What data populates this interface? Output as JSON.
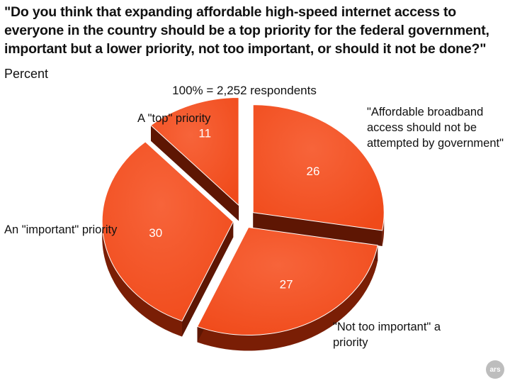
{
  "chart_data": {
    "type": "pie",
    "title": "\"Do you think that expanding affordable high-speed internet access to everyone in the country should be a top priority for the federal government, important but a lower priority, not too important, or should it not be done?\"",
    "subtitle": "Percent",
    "total_label": "100% = 2,252 respondents",
    "slices": [
      {
        "label": "\"Affordable broadband access should not be attempted by government\"",
        "value": 26,
        "value_label": "26"
      },
      {
        "label": "\"Not too important\" a priority",
        "value": 27,
        "value_label": "27"
      },
      {
        "label": "An \"important\" priority",
        "value": 30,
        "value_label": "30"
      },
      {
        "label": "A \"top\" priority",
        "value": 11,
        "value_label": "11"
      }
    ],
    "colors": {
      "slice": "#f04a1a",
      "slice_highlight": "#f7643a",
      "side": "#7a1e05"
    }
  },
  "logo": {
    "text": "ars",
    "color": "#bdbdbd"
  }
}
